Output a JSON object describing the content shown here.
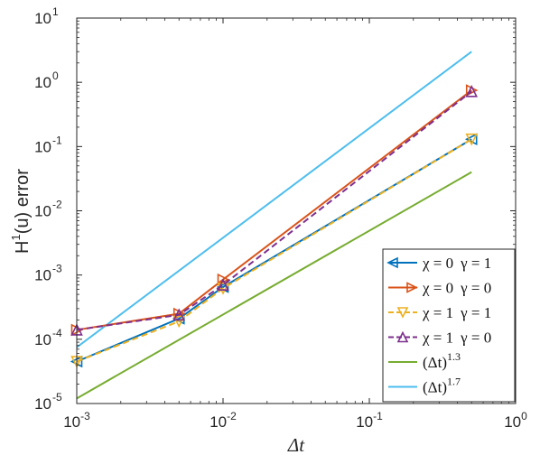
{
  "chart_data": {
    "type": "line",
    "xscale": "log",
    "yscale": "log",
    "xlim": [
      0.001,
      1
    ],
    "ylim": [
      1e-05,
      10
    ],
    "xlabel": "Δt",
    "ylabel": "H¹(u) error",
    "ylabel_parts": {
      "main": "H",
      "sup": "1",
      "rest": "(u) error"
    },
    "xticks": [
      {
        "base": "10",
        "exp": "-3",
        "value": 0.001
      },
      {
        "base": "10",
        "exp": "-2",
        "value": 0.01
      },
      {
        "base": "10",
        "exp": "-1",
        "value": 0.1
      },
      {
        "base": "10",
        "exp": "0",
        "value": 1
      }
    ],
    "yticks": [
      {
        "base": "10",
        "exp": "-5",
        "value": 1e-05
      },
      {
        "base": "10",
        "exp": "-4",
        "value": 0.0001
      },
      {
        "base": "10",
        "exp": "-3",
        "value": 0.001
      },
      {
        "base": "10",
        "exp": "-2",
        "value": 0.01
      },
      {
        "base": "10",
        "exp": "-1",
        "value": 0.1
      },
      {
        "base": "10",
        "exp": "0",
        "value": 1
      },
      {
        "base": "10",
        "exp": "1",
        "value": 10
      }
    ],
    "grid": false,
    "legend_position": "bottom-right",
    "series": [
      {
        "name": "χ = 0  γ = 1",
        "name_parts": {
          "v1": "χ = 0",
          "v2": "γ = 1"
        },
        "color": "#0072BD",
        "dash": "solid",
        "marker": "triangle-left",
        "x": [
          0.001,
          0.005,
          0.01,
          0.5
        ],
        "y": [
          4.5e-05,
          0.00021,
          0.00065,
          0.13
        ]
      },
      {
        "name": "χ = 0  γ = 0",
        "name_parts": {
          "v1": "χ = 0",
          "v2": "γ = 0"
        },
        "color": "#D95319",
        "dash": "solid",
        "marker": "triangle-right",
        "x": [
          0.001,
          0.005,
          0.01,
          0.5
        ],
        "y": [
          0.00014,
          0.00025,
          0.00085,
          0.75
        ]
      },
      {
        "name": "χ = 1  γ = 1",
        "name_parts": {
          "v1": "χ = 1",
          "v2": "γ = 1"
        },
        "color": "#EDB120",
        "dash": "dashed",
        "marker": "triangle-down",
        "x": [
          0.001,
          0.005,
          0.01,
          0.5
        ],
        "y": [
          4.5e-05,
          0.00019,
          0.00062,
          0.13
        ]
      },
      {
        "name": "χ = 1  γ = 0",
        "name_parts": {
          "v1": "χ = 1",
          "v2": "γ = 0"
        },
        "color": "#7E2F8E",
        "dash": "dashed",
        "marker": "triangle-up",
        "x": [
          0.001,
          0.005,
          0.01,
          0.5
        ],
        "y": [
          0.00014,
          0.00024,
          0.0007,
          0.72
        ]
      },
      {
        "name": "(Δt)^1.3",
        "name_parts": {
          "base": "(Δt)",
          "exp": "1.3"
        },
        "color": "#77AC30",
        "dash": "solid",
        "marker": "none",
        "x": [
          0.001,
          0.5
        ],
        "y": [
          1.2e-05,
          0.04
        ]
      },
      {
        "name": "(Δt)^1.7",
        "name_parts": {
          "base": "(Δt)",
          "exp": "1.7"
        },
        "color": "#4DBEEE",
        "dash": "solid",
        "marker": "none",
        "x": [
          0.001,
          0.5
        ],
        "y": [
          7.5e-05,
          3.0
        ]
      }
    ]
  }
}
